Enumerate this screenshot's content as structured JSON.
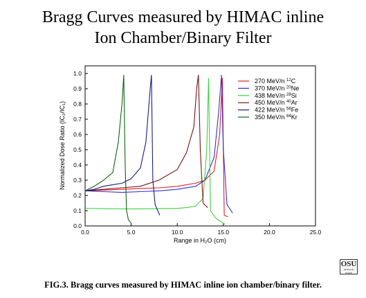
{
  "title_line1": "Bragg Curves measured by HIMAC inline",
  "title_line2": "Ion Chamber/Binary Filter",
  "caption_prefix": "FIG.3.",
  "caption_text": "Bragg curves measured by HIMAC inline ion chamber/binary filter.",
  "logo_text": "OSU",
  "chart_data": {
    "type": "line",
    "xlabel": "Range in H₂O (cm)",
    "ylabel": "Normalized Dose Ratio (IC₂/IC₁)",
    "xlim": [
      0,
      25
    ],
    "ylim": [
      0,
      1.05
    ],
    "xticks": [
      "0.0",
      "5.0",
      "10.0",
      "15.0",
      "20.0",
      "25.0"
    ],
    "yticks": [
      "0.0",
      "0.1",
      "0.2",
      "0.3",
      "0.4",
      "0.5",
      "0.6",
      "0.7",
      "0.8",
      "0.9",
      "1.0"
    ],
    "legend_position": "top-right",
    "grid": false,
    "series": [
      {
        "name": "270 MeV/n ¹²C",
        "label_main": "270 MeV/n ",
        "label_sup": "12",
        "label_el": "C",
        "color": "#e02020",
        "x": [
          0,
          2,
          4,
          6,
          8,
          10,
          12,
          13,
          14,
          14.6,
          14.9,
          15.0,
          15.1,
          15.5
        ],
        "y": [
          0.23,
          0.235,
          0.24,
          0.245,
          0.25,
          0.26,
          0.28,
          0.3,
          0.36,
          0.6,
          0.97,
          0.5,
          0.07,
          0.06
        ]
      },
      {
        "name": "370 MeV/n ²⁰Ne",
        "label_main": "370 MeV/n ",
        "label_sup": "20",
        "label_el": "Ne",
        "color": "#3030d0",
        "x": [
          0,
          2,
          4,
          6,
          8,
          10,
          12,
          13,
          14,
          14.5,
          14.8,
          15.0,
          15.4,
          16.0
        ],
        "y": [
          0.23,
          0.225,
          0.22,
          0.225,
          0.23,
          0.24,
          0.26,
          0.3,
          0.45,
          0.75,
          0.99,
          0.5,
          0.14,
          0.085
        ]
      },
      {
        "name": "438 MeV/n ²⁸Si",
        "label_main": "438 MeV/n ",
        "label_sup": "28",
        "label_el": "Si",
        "color": "#40d040",
        "x": [
          0,
          2,
          4,
          6,
          8,
          10,
          11,
          12,
          12.8,
          13.2,
          13.4,
          13.6,
          14.2,
          15.2
        ],
        "y": [
          0.115,
          0.113,
          0.112,
          0.112,
          0.113,
          0.115,
          0.12,
          0.13,
          0.18,
          0.5,
          0.97,
          0.1,
          0.05,
          0.01
        ]
      },
      {
        "name": "450 MeV/n ⁴⁰Ar",
        "label_main": "450 MeV/n ",
        "label_sup": "40",
        "label_el": "Ar",
        "color": "#7a1010",
        "x": [
          0,
          2,
          4,
          6,
          8,
          10,
          11,
          11.8,
          12.1,
          12.3,
          12.5,
          12.8,
          13.3
        ],
        "y": [
          0.23,
          0.24,
          0.25,
          0.26,
          0.3,
          0.37,
          0.48,
          0.65,
          0.9,
          0.99,
          0.5,
          0.15,
          0.12
        ]
      },
      {
        "name": "422 MeV/n ⁵⁶Fe",
        "label_main": "422 MeV/n ",
        "label_sup": "56",
        "label_el": "Fe",
        "color": "#1a1a80",
        "x": [
          0,
          1,
          2,
          3,
          4,
          5,
          6,
          6.6,
          7.0,
          7.2,
          7.35,
          7.6,
          8.1
        ],
        "y": [
          0.23,
          0.24,
          0.26,
          0.27,
          0.28,
          0.31,
          0.38,
          0.55,
          0.85,
          0.99,
          0.3,
          0.14,
          0.07
        ]
      },
      {
        "name": "350 MeV/n ⁸⁴Kr",
        "label_main": "350 MeV/n ",
        "label_sup": "84",
        "label_el": "Kr",
        "color": "#106010",
        "x": [
          0,
          1,
          2,
          3,
          3.6,
          4.0,
          4.2,
          4.35,
          4.5,
          4.7,
          5.0
        ],
        "y": [
          0.23,
          0.26,
          0.3,
          0.35,
          0.55,
          0.8,
          0.99,
          0.4,
          0.1,
          0.04,
          0.02
        ]
      }
    ]
  }
}
